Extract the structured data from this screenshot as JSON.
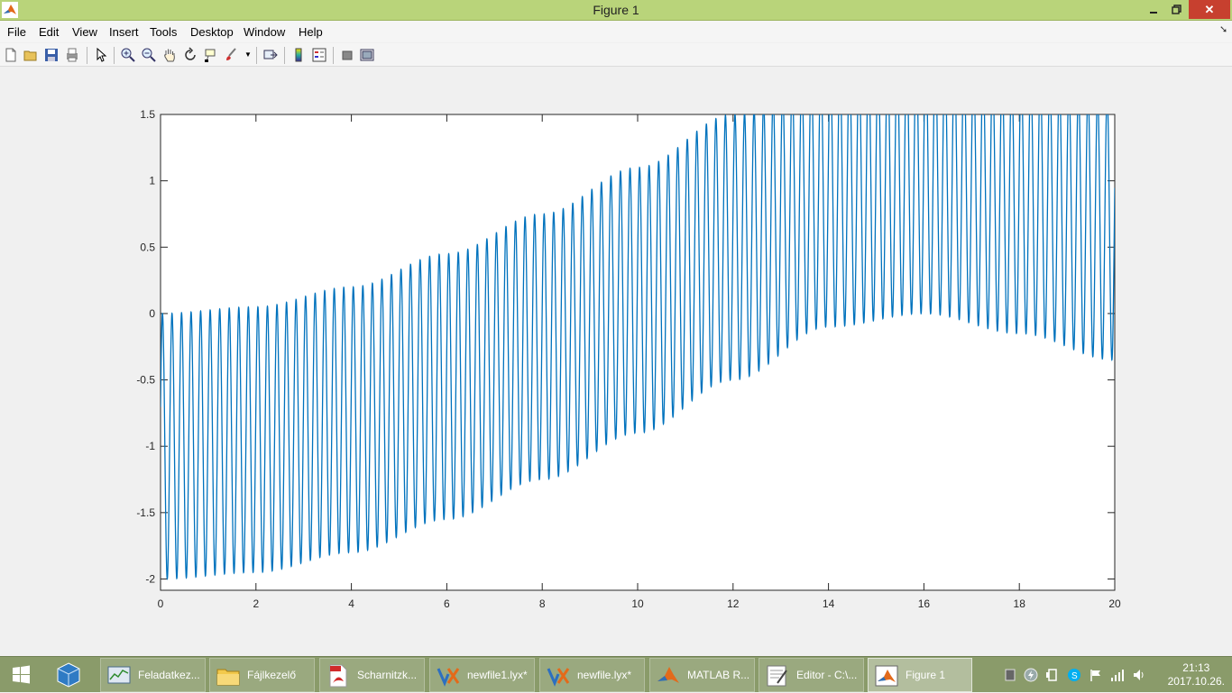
{
  "window": {
    "title": "Figure 1",
    "controls": {
      "minimize_icon": "minimize-icon",
      "maximize_icon": "restore-icon",
      "close_label": "✕"
    }
  },
  "menubar": {
    "items": [
      "File",
      "Edit",
      "View",
      "Insert",
      "Tools",
      "Desktop",
      "Window",
      "Help"
    ]
  },
  "toolbar": {
    "buttons": [
      "new-figure-icon",
      "open-file-icon",
      "save-icon",
      "print-icon",
      "pointer-icon",
      "zoom-in-icon",
      "zoom-out-icon",
      "pan-hand-icon",
      "rotate-3d-icon",
      "data-cursor-icon",
      "brush-icon",
      "link-plot-icon",
      "colorbar-icon",
      "legend-icon",
      "hide-plot-tools-icon",
      "show-plot-tools-icon"
    ]
  },
  "chart_data": {
    "type": "line",
    "x_function": "t",
    "y_function": "sin(2*pi*5*t) + sin(0.3*t)*0.8 approx",
    "xlim": [
      0,
      20
    ],
    "ylim": [
      -2.1,
      1.5
    ],
    "xticks": [
      "0",
      "2",
      "4",
      "6",
      "8",
      "10",
      "12",
      "14",
      "16",
      "18",
      "20"
    ],
    "yticks": [
      "1.5",
      "1",
      "0.5",
      "0",
      "-0.5",
      "-1",
      "-1.5",
      "-2"
    ],
    "series": [
      {
        "color": "#0072bd",
        "oscillation_frequency": 5,
        "amplitude": 1.0,
        "envelope": {
          "t": [
            0,
            2,
            4,
            6,
            8,
            10,
            12,
            14,
            16,
            18,
            20
          ],
          "center": [
            -1.0,
            -0.95,
            -0.8,
            -0.55,
            -0.25,
            0.1,
            0.5,
            0.9,
            1.0,
            0.85,
            0.65
          ]
        }
      }
    ],
    "grid": false
  },
  "taskbar": {
    "items": [
      {
        "label": "Feladatkez...",
        "icon": "task-manager-icon"
      },
      {
        "label": "Fájlkezelő",
        "icon": "file-explorer-icon"
      },
      {
        "label": "Scharnitzk...",
        "icon": "pdf-icon"
      },
      {
        "label": "newfile1.lyx*",
        "icon": "lyx-icon"
      },
      {
        "label": "newfile.lyx*",
        "icon": "lyx-icon"
      },
      {
        "label": "MATLAB R...",
        "icon": "matlab-icon"
      },
      {
        "label": "Editor - C:\\...",
        "icon": "editor-icon"
      },
      {
        "label": "Figure 1",
        "icon": "matlab-figure-icon"
      }
    ],
    "clock": {
      "time": "21:13",
      "date": "2017.10.26."
    }
  },
  "colors": {
    "titlebar": "#b9d47a",
    "taskbar": "#8a9b6a",
    "plot_line": "#0072bd"
  }
}
